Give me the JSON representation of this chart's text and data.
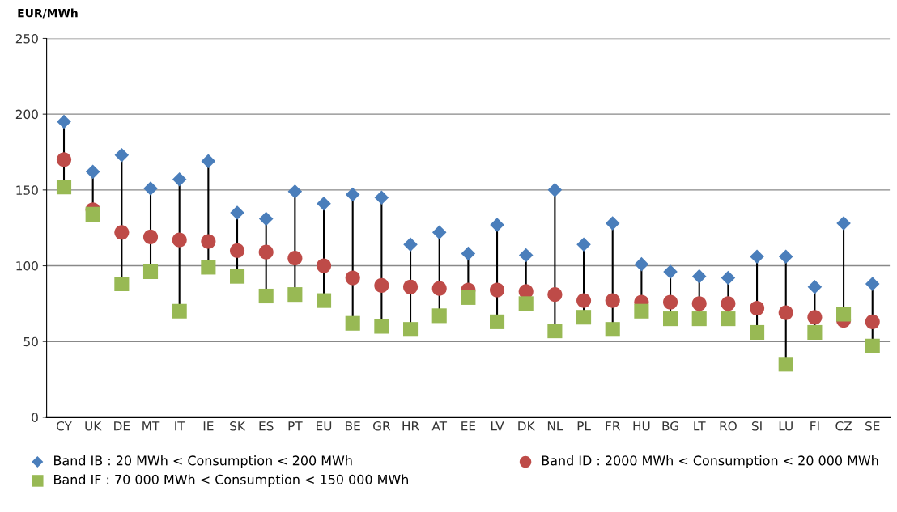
{
  "chart_data": {
    "type": "scatter",
    "ylabel": "EUR/MWh",
    "categories": [
      "CY",
      "UK",
      "DE",
      "MT",
      "IT",
      "IE",
      "SK",
      "ES",
      "PT",
      "EU",
      "BE",
      "GR",
      "HR",
      "AT",
      "EE",
      "LV",
      "DK",
      "NL",
      "PL",
      "FR",
      "HU",
      "BG",
      "LT",
      "RO",
      "SI",
      "LU",
      "FI",
      "CZ",
      "SE"
    ],
    "series": [
      {
        "name": "Band IB : 20 MWh < Consumption < 200 MWh",
        "color": "#4a7ebb",
        "marker": "diamond",
        "values": [
          195,
          162,
          173,
          151,
          157,
          169,
          135,
          131,
          149,
          141,
          147,
          145,
          114,
          122,
          108,
          127,
          107,
          150,
          114,
          128,
          101,
          96,
          93,
          92,
          106,
          106,
          86,
          128,
          88
        ]
      },
      {
        "name": "Band ID : 2000 MWh < Consumption < 20 000 MWh",
        "color": "#be4b48",
        "marker": "circle",
        "values": [
          170,
          137,
          122,
          119,
          117,
          116,
          110,
          109,
          105,
          100,
          92,
          87,
          86,
          85,
          84,
          84,
          83,
          81,
          77,
          77,
          76,
          76,
          75,
          75,
          72,
          69,
          66,
          64,
          63
        ]
      },
      {
        "name": "Band IF : 70 000 MWh < Consumption < 150 000 MWh",
        "color": "#98b954",
        "marker": "square",
        "values": [
          152,
          134,
          88,
          96,
          70,
          99,
          93,
          80,
          81,
          77,
          62,
          60,
          58,
          67,
          79,
          63,
          75,
          57,
          66,
          58,
          70,
          65,
          65,
          65,
          56,
          35,
          56,
          68,
          47
        ]
      }
    ],
    "ylim": [
      0,
      250
    ],
    "yticks": [
      0,
      50,
      100,
      150,
      200,
      250
    ],
    "grid": "y",
    "legend": "bottom"
  }
}
